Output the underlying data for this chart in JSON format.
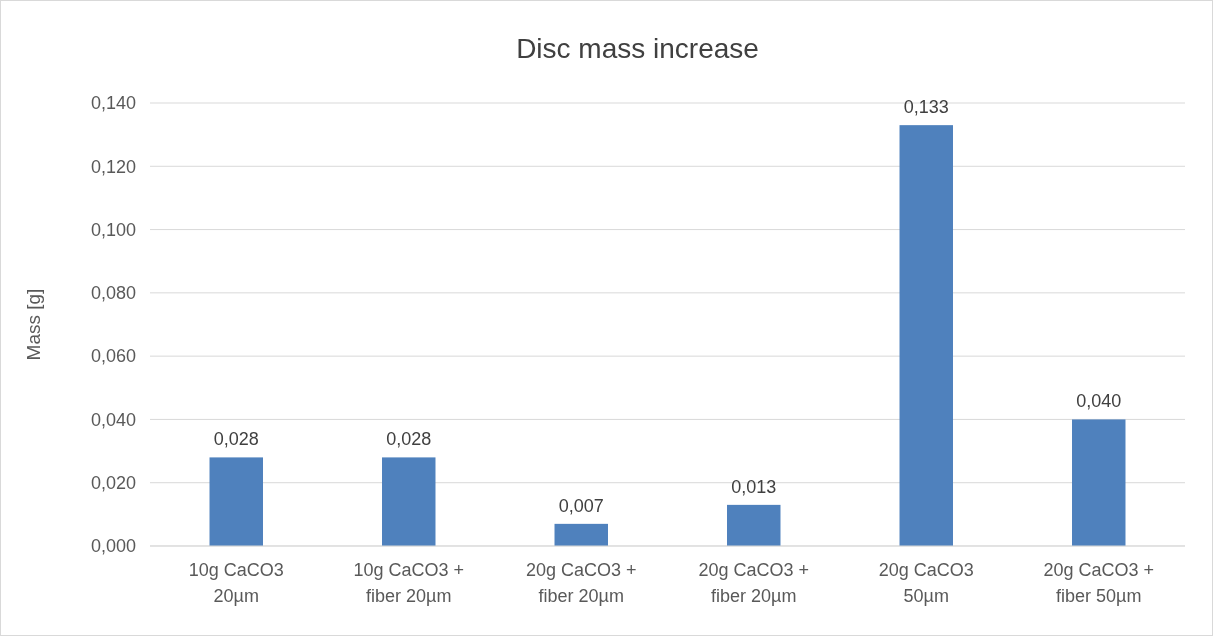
{
  "chart_data": {
    "type": "bar",
    "title": "Disc mass increase",
    "ylabel": "Mass [g]",
    "categories": [
      "10g CaCO3 20µm",
      "10g CaCO3 + fiber 20µm",
      "20g CaCO3 + fiber 20µm",
      "20g CaCO3 + fiber 20µm",
      "20g CaCO3 50µm",
      "20g CaCO3 + fiber 50µm"
    ],
    "values": [
      0.028,
      0.028,
      0.007,
      0.013,
      0.133,
      0.04
    ],
    "value_labels": [
      "0,028",
      "0,028",
      "0,007",
      "0,013",
      "0,133",
      "0,040"
    ],
    "color": "#4f81bd",
    "ylim": [
      0,
      0.14
    ],
    "yticks": [
      {
        "value": 0,
        "label": "0,000"
      },
      {
        "value": 0.02,
        "label": "0,020"
      },
      {
        "value": 0.04,
        "label": "0,040"
      },
      {
        "value": 0.06,
        "label": "0,060"
      },
      {
        "value": 0.08,
        "label": "0,080"
      },
      {
        "value": 0.1,
        "label": "0,100"
      },
      {
        "value": 0.12,
        "label": "0,120"
      },
      {
        "value": 0.14,
        "label": "0,140"
      }
    ],
    "grid": "y"
  }
}
